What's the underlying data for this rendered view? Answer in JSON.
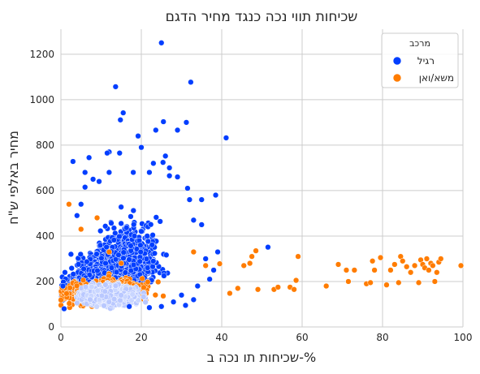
{
  "chart_data": {
    "type": "scatter",
    "title": "שכיחות תווי נכה כנגד מחיר הדגם",
    "xlabel": "שכיחות תו נכה ב-%",
    "ylabel": "מחיר באלפי ש\"ח",
    "xlim": [
      0,
      100
    ],
    "ylim": [
      0,
      1310
    ],
    "x_ticks": [
      0,
      20,
      40,
      60,
      80,
      100
    ],
    "y_ticks": [
      0,
      200,
      400,
      600,
      800,
      1000,
      1200
    ],
    "grid": true,
    "legend": {
      "title": "מרכב",
      "placement": "top-right"
    },
    "series": [
      {
        "name": "רגיל",
        "color": "#023eff",
        "points": [
          [
            25.0,
            1250
          ],
          [
            32.3,
            1077
          ],
          [
            13.6,
            1057
          ],
          [
            15.5,
            942
          ],
          [
            14.8,
            911
          ],
          [
            25.5,
            903
          ],
          [
            31.2,
            900
          ],
          [
            23.6,
            866
          ],
          [
            29.0,
            866
          ],
          [
            41.1,
            832
          ],
          [
            19.2,
            840
          ],
          [
            20.0,
            790
          ],
          [
            12.0,
            770
          ],
          [
            11.5,
            765
          ],
          [
            14.6,
            765
          ],
          [
            26.0,
            752
          ],
          [
            25.4,
            724
          ],
          [
            3.0,
            728
          ],
          [
            23.0,
            720
          ],
          [
            27.0,
            700
          ],
          [
            7.0,
            745
          ],
          [
            6.0,
            680
          ],
          [
            12.0,
            680
          ],
          [
            18.0,
            680
          ],
          [
            22.0,
            680
          ],
          [
            27.0,
            665
          ],
          [
            29.0,
            660
          ],
          [
            8.0,
            650
          ],
          [
            9.5,
            640
          ],
          [
            31.5,
            610
          ],
          [
            6.0,
            615
          ],
          [
            38.5,
            580
          ],
          [
            35.0,
            560
          ],
          [
            32.0,
            560
          ],
          [
            5.0,
            540
          ],
          [
            4.0,
            490
          ],
          [
            33.0,
            470
          ],
          [
            35.0,
            450
          ],
          [
            51.5,
            351
          ],
          [
            39.0,
            330
          ],
          [
            36.0,
            300
          ],
          [
            2.5,
            320
          ],
          [
            0.5,
            180
          ],
          [
            1.0,
            240
          ],
          [
            0.8,
            80
          ],
          [
            38.0,
            250
          ],
          [
            34.0,
            180
          ],
          [
            37.0,
            210
          ],
          [
            30.0,
            140
          ],
          [
            33.0,
            120
          ],
          [
            31.0,
            95
          ],
          [
            28.0,
            110
          ],
          [
            25.0,
            90
          ],
          [
            22.0,
            85
          ],
          [
            17.0,
            90
          ]
        ]
      },
      {
        "name": "משא/ואן",
        "color": "#ff7c00",
        "points": [
          [
            2.0,
            540
          ],
          [
            5.0,
            430
          ],
          [
            9.0,
            480
          ],
          [
            12.0,
            330
          ],
          [
            15.0,
            280
          ],
          [
            33.0,
            330
          ],
          [
            36.0,
            270
          ],
          [
            39.5,
            278
          ],
          [
            42.0,
            148
          ],
          [
            44.0,
            170
          ],
          [
            45.5,
            270
          ],
          [
            47.0,
            280
          ],
          [
            47.5,
            310
          ],
          [
            48.5,
            335
          ],
          [
            49.0,
            165
          ],
          [
            53.0,
            165
          ],
          [
            54.0,
            175
          ],
          [
            57.0,
            175
          ],
          [
            58.0,
            165
          ],
          [
            58.5,
            205
          ],
          [
            59.0,
            310
          ],
          [
            66.0,
            180
          ],
          [
            69.0,
            275
          ],
          [
            71.0,
            250
          ],
          [
            71.5,
            200
          ],
          [
            73.0,
            250
          ],
          [
            76.0,
            190
          ],
          [
            77.0,
            195
          ],
          [
            77.5,
            290
          ],
          [
            78.0,
            250
          ],
          [
            79.5,
            305
          ],
          [
            81.0,
            185
          ],
          [
            82.0,
            250
          ],
          [
            83.0,
            275
          ],
          [
            84.0,
            195
          ],
          [
            84.5,
            310
          ],
          [
            85.0,
            290
          ],
          [
            86.0,
            265
          ],
          [
            87.0,
            240
          ],
          [
            88.0,
            270
          ],
          [
            89.0,
            195
          ],
          [
            89.5,
            295
          ],
          [
            90.0,
            275
          ],
          [
            90.5,
            260
          ],
          [
            91.0,
            300
          ],
          [
            91.5,
            250
          ],
          [
            92.0,
            280
          ],
          [
            92.5,
            270
          ],
          [
            93.0,
            200
          ],
          [
            93.5,
            240
          ],
          [
            94.0,
            285
          ],
          [
            94.5,
            300
          ],
          [
            99.5,
            270
          ]
        ]
      }
    ],
    "clusters": [
      {
        "series": "רגיל",
        "description": "dense band",
        "x_range": [
          0,
          35
        ],
        "y_typical": [
          60,
          450
        ],
        "x_center": 12,
        "y_center": 160
      },
      {
        "series": "משא/ואן",
        "description": "dense band",
        "x_range": [
          0,
          38
        ],
        "y_typical": [
          80,
          260
        ],
        "x_center": 12,
        "y_center": 150
      }
    ]
  }
}
